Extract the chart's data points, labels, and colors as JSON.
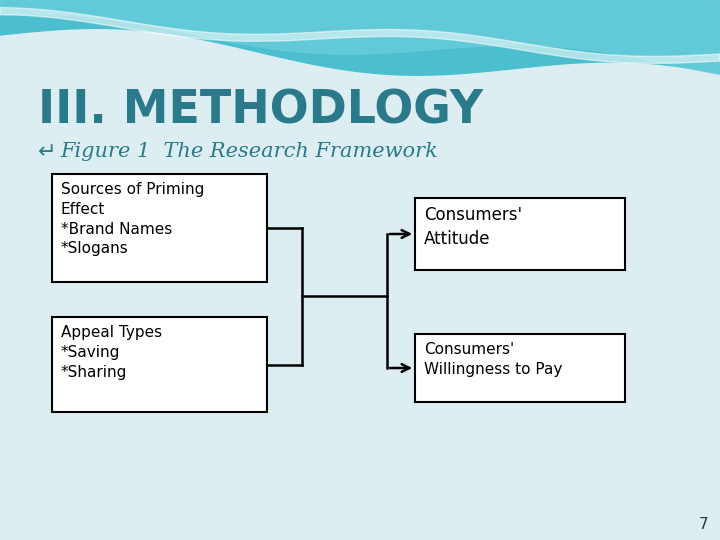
{
  "title": "III. METHODLOGY",
  "subtitle_bullet": "Figure 1  The Research Framework",
  "box1_text": "Sources of Priming\nEffect\n*Brand Names\n*Slogans",
  "box2_text": "Appeal Types\n*Saving\n*Sharing",
  "box3_text": "Consumers'\nAttitude",
  "box4_text": "Consumers'\nWillingness to Pay",
  "bg_color": "#ddeef2",
  "title_color": "#2a7a8c",
  "subtitle_color": "#2a7a8c",
  "box_text_color": "#000000",
  "box_edge_color": "#000000",
  "arrow_color": "#000000",
  "page_number": "7",
  "wave_color1": "#4bbfcf",
  "wave_color2": "#6ecfdc",
  "wave_white": "#ffffff"
}
